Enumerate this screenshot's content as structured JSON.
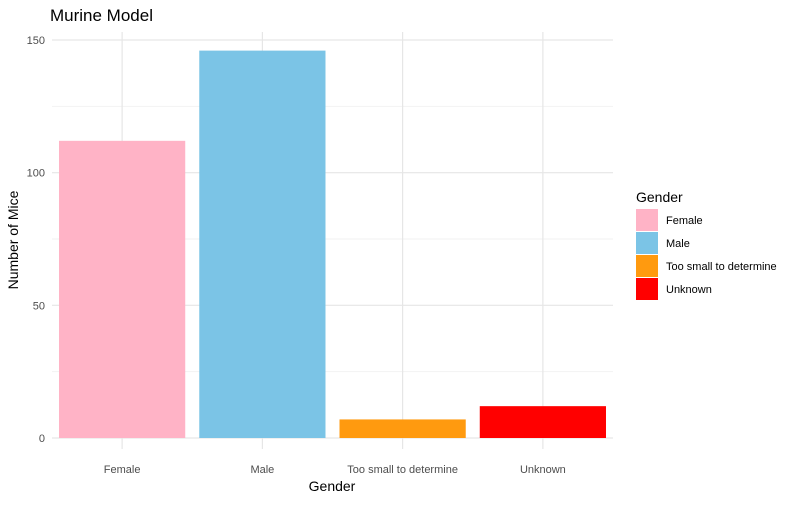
{
  "chart_data": {
    "type": "bar",
    "title": "Murine Model",
    "xlabel": "Gender",
    "ylabel": "Number of Mice",
    "categories": [
      "Female",
      "Male",
      "Too small to determine",
      "Unknown"
    ],
    "values": [
      112,
      146,
      7,
      12
    ],
    "colors": [
      "#FFB3C6",
      "#7BC4E6",
      "#FF9A0F",
      "#FF0000"
    ],
    "ylim": [
      0,
      150
    ],
    "yticks": [
      0,
      50,
      100,
      150
    ],
    "grid": true,
    "legend": {
      "title": "Gender",
      "position": "right",
      "entries": [
        "Female",
        "Male",
        "Too small to determine",
        "Unknown"
      ]
    }
  }
}
